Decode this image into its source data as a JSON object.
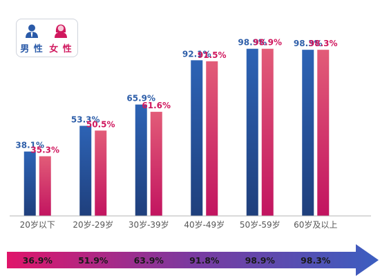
{
  "legend": {
    "male_label": "男 性",
    "female_label": "女 性",
    "male_icon": "male-user-icon",
    "female_icon": "female-user-icon"
  },
  "colors": {
    "male": "#2d63b5",
    "male_dark": "#1f3f7c",
    "female": "#e25c78",
    "female_dark": "#c21460",
    "arrow_start": "#e0156a",
    "arrow_mid": "#7a3aa0",
    "arrow_end": "#3b5ec0",
    "axis": "#b5b5b5"
  },
  "chart_data": {
    "type": "bar",
    "categories": [
      "20岁以下",
      "20岁-29岁",
      "30岁-39岁",
      "40岁-49岁",
      "50岁-59岁",
      "60岁及以上"
    ],
    "series": [
      {
        "name": "男 性",
        "values": [
          38.1,
          53.3,
          65.9,
          92.1,
          98.9,
          98.3
        ],
        "labels": [
          "38.1%",
          "53.3%",
          "65.9%",
          "92.1%",
          "98.9%",
          "98.3%"
        ]
      },
      {
        "name": "女 性",
        "values": [
          35.3,
          50.5,
          61.6,
          91.5,
          98.9,
          98.3
        ],
        "labels": [
          "35.3%",
          "50.5%",
          "61.6%",
          "91.5%",
          "98.9%",
          "98.3%"
        ]
      }
    ],
    "overall": {
      "values": [
        36.9,
        51.9,
        63.9,
        91.8,
        98.9,
        98.3
      ],
      "labels": [
        "36.9%",
        "51.9%",
        "63.9%",
        "91.8%",
        "98.9%",
        "98.3%"
      ]
    },
    "ylim": [
      0,
      100
    ],
    "grid": false,
    "legend_position": "top-left"
  }
}
